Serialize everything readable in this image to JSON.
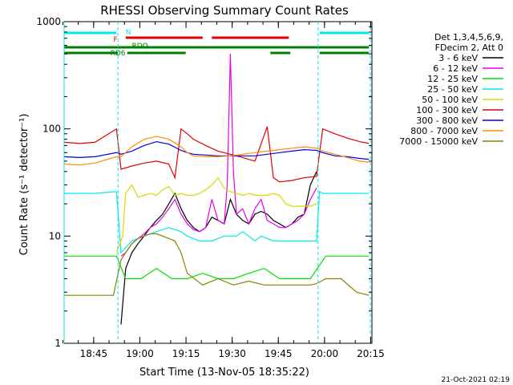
{
  "chart_data": {
    "type": "line",
    "title": "RHESSI Observing Summary Count Rates",
    "xlabel": "Start Time (13-Nov-05 18:35:22)",
    "ylabel": "Count Rate (s⁻¹ detector⁻¹)",
    "yscale": "log",
    "ylim": [
      1,
      1000
    ],
    "xlim_minutes": [
      0,
      100
    ],
    "y_ticks": [
      "1",
      "10",
      "100",
      "1000"
    ],
    "x_ticks": [
      "18:45",
      "19:00",
      "19:15",
      "19:30",
      "19:45",
      "20:00",
      "20:15"
    ],
    "x_tick_minutes": [
      9.6,
      24.6,
      39.6,
      54.6,
      69.6,
      84.6,
      99.6
    ],
    "footer": "21-Oct-2021 02:19",
    "legend_header": [
      "Det 1,3,4,5,6,9,",
      "FDecim 2, Att 0"
    ],
    "series": [
      {
        "name": "3 - 6 keV",
        "color": "#000000",
        "x": [
          18.5,
          20,
          22,
          24,
          26,
          28,
          30,
          32,
          34,
          36,
          38,
          40,
          42,
          44,
          46,
          48,
          50,
          52,
          54,
          56,
          58,
          60,
          62,
          64,
          66,
          68,
          70,
          72,
          74,
          76,
          78,
          80,
          82
        ],
        "y": [
          1.5,
          5,
          7,
          8.5,
          10,
          12,
          14,
          16,
          20,
          25,
          18,
          14,
          12,
          11,
          12,
          15,
          14,
          13,
          22,
          16,
          14,
          13,
          16,
          17,
          16,
          14,
          13,
          12,
          13,
          15,
          16,
          30,
          40
        ]
      },
      {
        "name": "6 - 12 keV",
        "color": "#e800e8",
        "x": [
          18.5,
          20,
          22,
          24,
          26,
          28,
          30,
          32,
          34,
          36,
          38,
          40,
          42,
          44,
          46,
          48,
          50,
          52,
          53,
          54,
          55,
          56,
          58,
          60,
          62,
          64,
          66,
          68,
          70,
          72,
          74,
          76,
          78,
          80,
          82
        ],
        "y": [
          6.5,
          7,
          8.5,
          9.5,
          10.5,
          12,
          13,
          15,
          18,
          22,
          16,
          13,
          11.5,
          11,
          12,
          22,
          14,
          13,
          30,
          500,
          40,
          16,
          18,
          13,
          18,
          22,
          14,
          13,
          12,
          12,
          13,
          14,
          16,
          22,
          28
        ]
      },
      {
        "name": "12 - 25 keV",
        "color": "#00e000",
        "x": [
          0,
          10,
          17,
          20,
          25,
          30,
          35,
          40,
          45,
          50,
          55,
          60,
          65,
          70,
          75,
          80,
          85,
          90,
          99
        ],
        "y": [
          6.5,
          6.5,
          6.5,
          4,
          4,
          5,
          4,
          4,
          4.5,
          4,
          4,
          4.5,
          5,
          4,
          4,
          4,
          6.5,
          6.5,
          6.5
        ]
      },
      {
        "name": "25 - 50 keV",
        "color": "#00e8e8",
        "x": [
          0,
          10,
          17,
          18.5,
          22,
          26,
          30,
          34,
          38,
          40,
          44,
          48,
          52,
          56,
          58,
          60,
          62,
          64,
          68,
          72,
          76,
          80,
          82,
          83,
          84,
          90,
          99
        ],
        "y": [
          25,
          25,
          26,
          7,
          9,
          10,
          11,
          12,
          11,
          10,
          9,
          9,
          10,
          10,
          11,
          10,
          9,
          10,
          9,
          9,
          9,
          9,
          9,
          26,
          25,
          25,
          25
        ]
      },
      {
        "name": "50 - 100 keV",
        "color": "#d8d800",
        "x": [
          17,
          19,
          20,
          22,
          24,
          26,
          28,
          30,
          32,
          34,
          36,
          38,
          40,
          42,
          44,
          46,
          48,
          50,
          52,
          54,
          56,
          58,
          60,
          62,
          64,
          66,
          68,
          70,
          72,
          74,
          76,
          78,
          80,
          82
        ],
        "y": [
          7,
          10,
          25,
          30,
          23,
          24,
          25,
          24,
          27,
          29,
          24,
          25,
          24,
          24,
          25,
          27,
          30,
          35,
          28,
          26,
          25,
          24,
          25,
          24,
          24,
          24,
          25,
          24,
          20,
          19,
          19,
          19,
          19,
          20
        ]
      },
      {
        "name": "100 - 300 keV",
        "color": "#e00000",
        "x": [
          0,
          5,
          10,
          17,
          18.5,
          22,
          26,
          30,
          34,
          36,
          38,
          40,
          42,
          46,
          50,
          54,
          58,
          62,
          66,
          68,
          70,
          74,
          78,
          82,
          84,
          88,
          92,
          96,
          99
        ],
        "y": [
          75,
          73,
          75,
          100,
          42,
          45,
          48,
          50,
          47,
          35,
          100,
          90,
          80,
          70,
          62,
          58,
          54,
          50,
          105,
          35,
          32,
          33,
          35,
          36,
          100,
          90,
          82,
          76,
          73
        ]
      },
      {
        "name": "300 - 800 keV",
        "color": "#0000e0",
        "x": [
          0,
          5,
          10,
          17,
          18.5,
          22,
          26,
          30,
          34,
          38,
          40,
          42,
          46,
          50,
          54,
          58,
          62,
          66,
          70,
          74,
          78,
          82,
          84,
          88,
          92,
          96,
          99
        ],
        "y": [
          55,
          54,
          55,
          60,
          58,
          62,
          70,
          76,
          72,
          63,
          60,
          58,
          57,
          56,
          56,
          56,
          56,
          58,
          60,
          62,
          64,
          63,
          60,
          56,
          55,
          53,
          52
        ]
      },
      {
        "name": "800 - 7000 keV",
        "color": "#ff8c00",
        "x": [
          0,
          5,
          10,
          17,
          18.5,
          22,
          26,
          30,
          34,
          38,
          40,
          42,
          46,
          50,
          54,
          58,
          62,
          66,
          70,
          74,
          78,
          82,
          84,
          88,
          92,
          96,
          99
        ],
        "y": [
          47,
          46,
          48,
          55,
          55,
          68,
          80,
          85,
          80,
          68,
          60,
          56,
          55,
          55,
          56,
          58,
          60,
          62,
          64,
          66,
          68,
          66,
          62,
          58,
          54,
          50,
          49
        ]
      },
      {
        "name": "7000 - 15000 keV",
        "color": "#8b8000",
        "x": [
          0,
          8,
          16,
          17,
          18.5,
          20,
          22,
          24,
          26,
          28,
          30,
          32,
          34,
          36,
          38,
          40,
          45,
          50,
          55,
          60,
          65,
          70,
          75,
          80,
          82,
          85,
          90,
          95,
          99
        ],
        "y": [
          2.8,
          2.8,
          2.8,
          3.8,
          6,
          7,
          8.5,
          9.5,
          10,
          10.5,
          10.5,
          10,
          9.5,
          9,
          7,
          4.5,
          3.5,
          4,
          3.5,
          3.8,
          3.5,
          3.5,
          3.5,
          3.5,
          3.6,
          4,
          4,
          3,
          2.8
        ]
      }
    ],
    "attenuator_bars": [
      {
        "label": "N",
        "color": "#00e8e8",
        "segments": [
          [
            0,
            17
          ],
          [
            83,
            99
          ]
        ]
      },
      {
        "label": "F",
        "color": "#e00000",
        "segments": [
          [
            20,
            45
          ],
          [
            48,
            73
          ]
        ]
      },
      {
        "label": "RDO",
        "color": "#008000",
        "segments": [
          [
            0,
            99
          ]
        ]
      },
      {
        "label": "RD6",
        "color": "#008000",
        "segments": [
          [
            0,
            17.5
          ],
          [
            20.5,
            39.5
          ],
          [
            67,
            73.5
          ],
          [
            83,
            99
          ]
        ]
      }
    ]
  }
}
